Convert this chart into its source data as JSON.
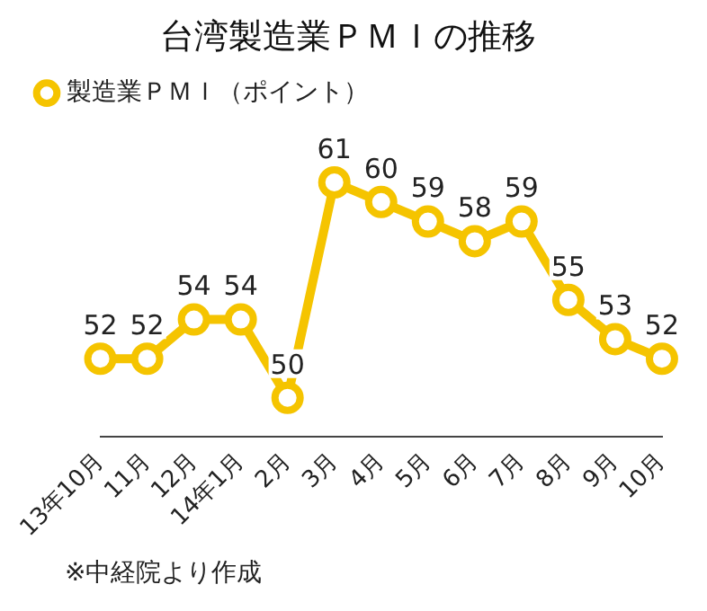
{
  "chart_data": {
    "type": "line",
    "title": "台湾製造業ＰＭＩの推移",
    "categories": [
      "13年10月",
      "11月",
      "12月",
      "14年1月",
      "2月",
      "3月",
      "4月",
      "5月",
      "6月",
      "7月",
      "8月",
      "9月",
      "10月"
    ],
    "series": [
      {
        "name": "製造業ＰＭＩ（ポイント）",
        "color": "#f5c400",
        "values": [
          52,
          52,
          54,
          54,
          50,
          61,
          60,
          59,
          58,
          59,
          55,
          53,
          52
        ]
      }
    ],
    "data_labels": true,
    "legend": "top left",
    "marker": "circle",
    "line_style": "solid",
    "grid": false,
    "tick_labels": "x",
    "annotations": [
      "※中経院より作成"
    ]
  }
}
